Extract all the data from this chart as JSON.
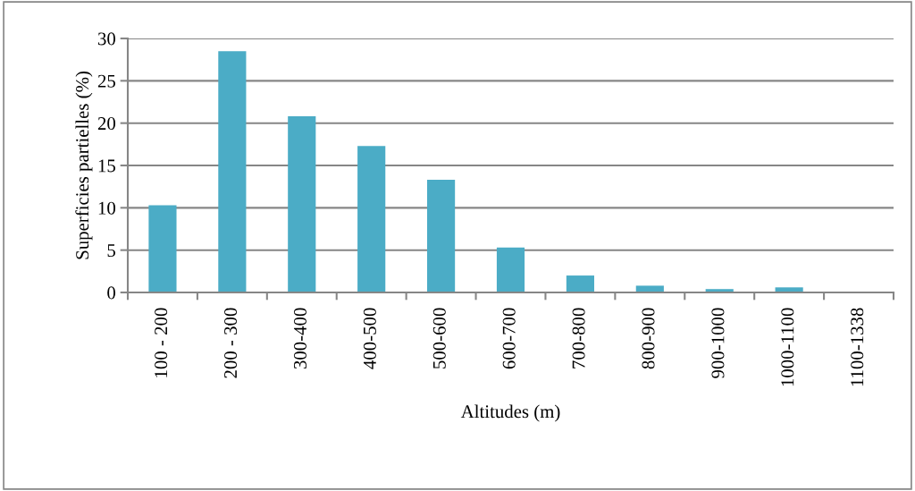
{
  "chart_data": {
    "type": "bar",
    "xlabel": "Altitudes (m)",
    "ylabel": "Superficies partielles (%)",
    "categories": [
      "100 - 200",
      "200 - 300",
      "300-400",
      "400-500",
      "500-600",
      "600-700",
      "700-800",
      "800-900",
      "900-1000",
      "1000-1100",
      "1100-1338"
    ],
    "values": [
      10.3,
      28.5,
      20.8,
      17.3,
      13.3,
      5.3,
      2.0,
      0.8,
      0.4,
      0.6,
      0.1
    ],
    "color": "#4bacc6",
    "ylim": [
      0,
      30
    ],
    "yticks": [
      0,
      5,
      10,
      15,
      20,
      25,
      30
    ],
    "grid": "y"
  }
}
